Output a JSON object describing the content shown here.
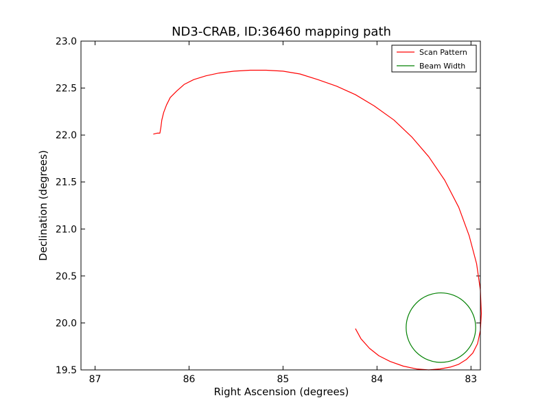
{
  "chart_data": {
    "type": "line",
    "title": "ND3-CRAB, ID:36460 mapping path",
    "xlabel": "Right Ascension (degrees)",
    "ylabel": "Declination (degrees)",
    "xlim": [
      87.15,
      82.9
    ],
    "ylim": [
      19.5,
      23.0
    ],
    "x_inverted": true,
    "xticks": [
      87,
      86,
      85,
      84,
      83
    ],
    "xtick_labels": [
      "87",
      "86",
      "85",
      "84",
      "83"
    ],
    "yticks": [
      19.5,
      20.0,
      20.5,
      21.0,
      21.5,
      22.0,
      22.5,
      23.0
    ],
    "ytick_labels": [
      "19.5",
      "20.0",
      "20.5",
      "21.0",
      "21.5",
      "22.0",
      "22.5",
      "23.0"
    ],
    "grid": false,
    "legend_position": "top-right",
    "series": [
      {
        "name": "Scan Pattern",
        "color": "#ff0000",
        "x": [
          86.38,
          86.34,
          86.31,
          86.3,
          86.29,
          86.27,
          86.24,
          86.2,
          86.13,
          86.05,
          85.95,
          85.82,
          85.68,
          85.52,
          85.35,
          85.18,
          85.0,
          84.82,
          84.63,
          84.43,
          84.23,
          84.03,
          83.82,
          83.63,
          83.45,
          83.28,
          83.13,
          83.02,
          82.94,
          82.9,
          82.89,
          82.9,
          82.93,
          82.98,
          83.05,
          83.13,
          83.22,
          83.33,
          83.45,
          83.58,
          83.72,
          83.86,
          83.98,
          84.08,
          84.17,
          84.23
        ],
        "y": [
          22.01,
          22.02,
          22.02,
          22.08,
          22.16,
          22.24,
          22.32,
          22.4,
          22.47,
          22.54,
          22.59,
          22.63,
          22.66,
          22.68,
          22.69,
          22.69,
          22.68,
          22.65,
          22.59,
          22.52,
          22.43,
          22.31,
          22.16,
          21.98,
          21.77,
          21.52,
          21.23,
          20.93,
          20.63,
          20.35,
          20.1,
          19.92,
          19.78,
          19.68,
          19.61,
          19.56,
          19.53,
          19.51,
          19.5,
          19.51,
          19.54,
          19.59,
          19.65,
          19.73,
          19.83,
          19.94
        ]
      },
      {
        "name": "Beam Width",
        "color": "#008000",
        "shape": "circle",
        "center": [
          83.32,
          19.95
        ],
        "radius": 0.37
      }
    ]
  }
}
